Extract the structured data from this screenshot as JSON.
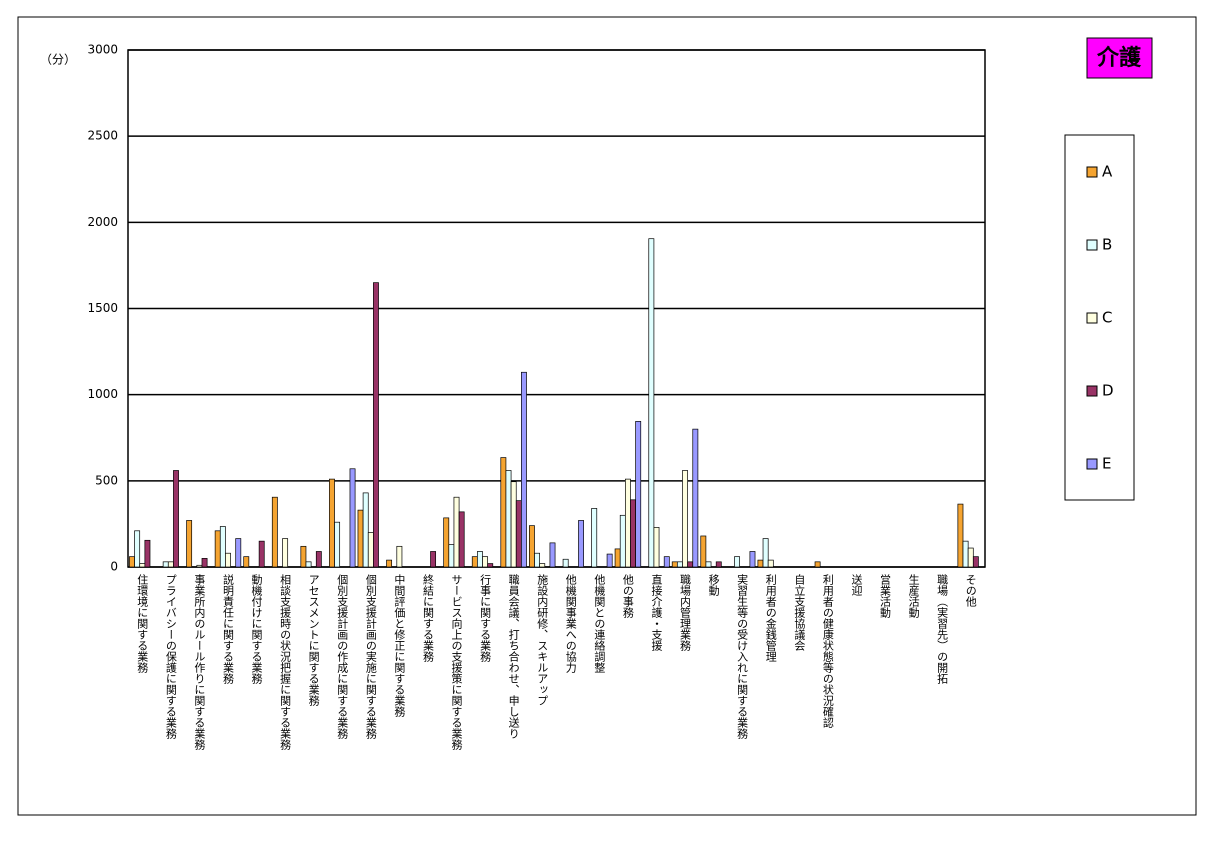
{
  "chart_data": {
    "type": "bar",
    "title": "介護",
    "y_label": "（分）",
    "categories": [
      "住環境に関する業務",
      "プライバシーの保護に関する業務",
      "事業所内のルール作りに関する業務",
      "説明責任に関する業務",
      "動機付けに関する業務",
      "相談支援時の状況把握に関する業務",
      "アセスメントに関する業務",
      "個別支援計画の作成に関する業務",
      "個別支援計画の実施に関する業務",
      "中間評価と修正に関する業務",
      "終結に関する業務",
      "サービス向上の支援策に関する業務",
      "行事に関する業務",
      "職員会議、打ち合わせ、申し送り",
      "施設内研修、スキルアップ",
      "他機関事業への協力",
      "他機関との連絡調整",
      "他の事務",
      "直接介護・支援",
      "職場内管理業務",
      "移動",
      "実習生等の受け入れに関する業務",
      "利用者の金銭管理",
      "自立支援協議会",
      "利用者の健康状態等の状況確認",
      "送迎",
      "営業活動",
      "生産活動",
      "職場（実習先）の開拓",
      "その他"
    ],
    "series": [
      {
        "name": "A",
        "color": "#f5a431",
        "values": [
          60,
          0,
          270,
          210,
          60,
          405,
          120,
          510,
          330,
          40,
          0,
          285,
          60,
          635,
          240,
          0,
          0,
          105,
          0,
          30,
          180,
          0,
          40,
          0,
          30,
          0,
          0,
          0,
          0,
          365
        ]
      },
      {
        "name": "B",
        "color": "#e0ffff",
        "values": [
          210,
          30,
          0,
          235,
          0,
          0,
          30,
          260,
          430,
          0,
          0,
          130,
          90,
          560,
          80,
          45,
          340,
          300,
          1905,
          30,
          30,
          60,
          165,
          0,
          0,
          0,
          0,
          0,
          0,
          150
        ]
      },
      {
        "name": "C",
        "color": "#ffffe0",
        "values": [
          20,
          30,
          10,
          80,
          0,
          165,
          0,
          0,
          200,
          120,
          0,
          405,
          60,
          495,
          20,
          0,
          0,
          510,
          230,
          560,
          0,
          0,
          40,
          0,
          0,
          0,
          0,
          0,
          0,
          110
        ]
      },
      {
        "name": "D",
        "color": "#993366",
        "values": [
          155,
          560,
          50,
          0,
          150,
          0,
          90,
          0,
          1650,
          0,
          90,
          320,
          20,
          385,
          0,
          0,
          0,
          390,
          0,
          30,
          30,
          0,
          0,
          0,
          0,
          0,
          0,
          0,
          0,
          60
        ]
      },
      {
        "name": "E",
        "color": "#9999ff",
        "values": [
          0,
          0,
          0,
          165,
          0,
          0,
          0,
          570,
          0,
          0,
          0,
          0,
          0,
          1130,
          140,
          270,
          75,
          845,
          60,
          800,
          0,
          90,
          0,
          0,
          0,
          0,
          0,
          0,
          0,
          0
        ]
      }
    ],
    "ylim": [
      0,
      3000
    ],
    "yticks": [
      0,
      500,
      1000,
      1500,
      2000,
      2500,
      3000
    ],
    "grid": true,
    "legend": "right"
  }
}
